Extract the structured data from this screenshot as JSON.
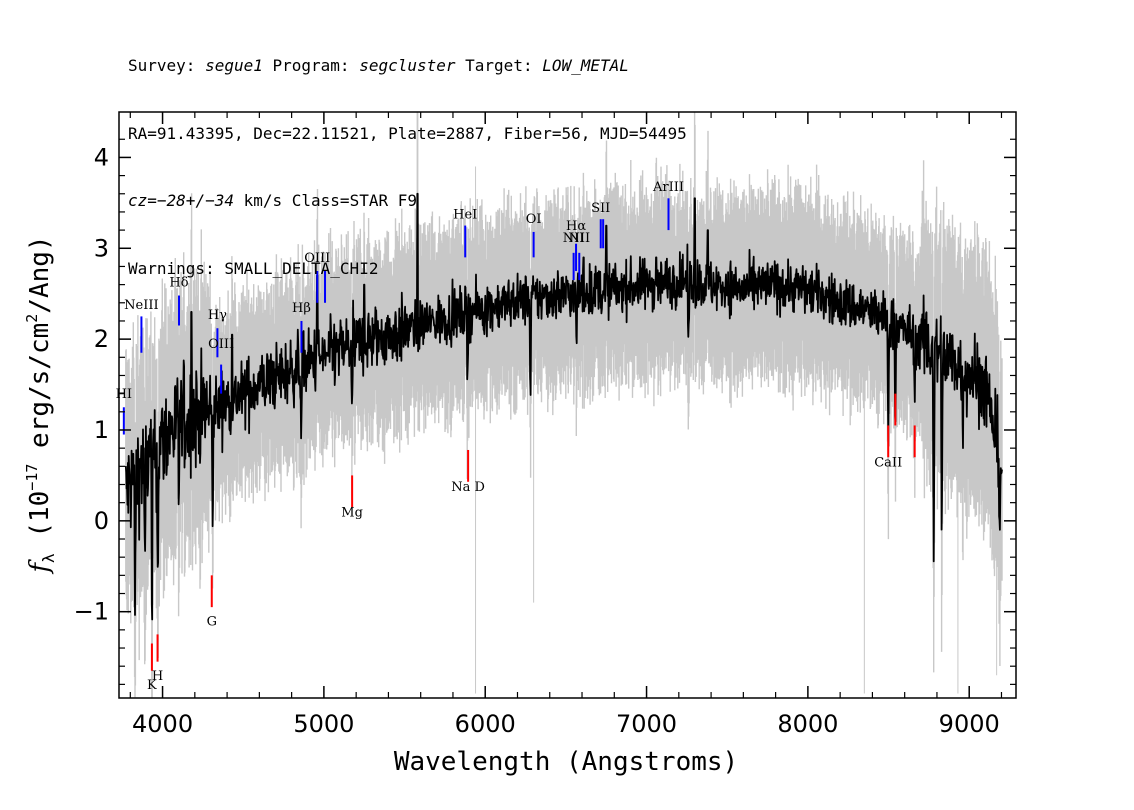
{
  "header": {
    "line1": {
      "survey_key": "Survey: ",
      "survey_val": "segue1",
      "program_key": " Program: ",
      "program_val": "segcluster",
      "target_key": " Target: ",
      "target_val": "LOW_METAL"
    },
    "line2": "RA=91.43395, Dec=22.11521, Plate=2887, Fiber=56, MJD=54495",
    "line3": {
      "cz_label": "cz=",
      "cz_val": "−28+/−34",
      "rest": " km/s Class=STAR F9"
    },
    "line4": "Warnings: SMALL_DELTA_CHI2"
  },
  "chart_data": {
    "type": "line",
    "xlabel": "Wavelength (Angstroms)",
    "ylabel": "f_λ (10^-17 erg/s/cm^2/Ang)",
    "ylabel_parts": {
      "f": "f",
      "sub": "λ",
      "mid": " (10",
      "exp1": "−17",
      "after": " erg/s/cm",
      "exp2": "2",
      "end": "/Ang)"
    },
    "xlim": [
      3730,
      9290
    ],
    "ylim": [
      -1.95,
      4.5
    ],
    "xticks": [
      4000,
      5000,
      6000,
      7000,
      8000,
      9000
    ],
    "xtick_labels": [
      "4000",
      "5000",
      "6000",
      "7000",
      "8000",
      "9000"
    ],
    "yticks": [
      -1,
      0,
      1,
      2,
      3,
      4
    ],
    "ytick_labels": [
      "−1",
      "0",
      "1",
      "2",
      "3",
      "4"
    ],
    "colors": {
      "flux": "#000000",
      "error": "#c8c8c8",
      "emission": "#0000ff",
      "absorption": "#ff0000"
    },
    "continuum_anchors": [
      [
        3770,
        0.3
      ],
      [
        3850,
        0.55
      ],
      [
        3950,
        0.75
      ],
      [
        4050,
        1.0
      ],
      [
        4200,
        1.15
      ],
      [
        4400,
        1.3
      ],
      [
        4600,
        1.5
      ],
      [
        4800,
        1.65
      ],
      [
        5000,
        1.8
      ],
      [
        5200,
        1.95
      ],
      [
        5400,
        2.05
      ],
      [
        5600,
        2.15
      ],
      [
        5800,
        2.25
      ],
      [
        6000,
        2.35
      ],
      [
        6200,
        2.42
      ],
      [
        6400,
        2.48
      ],
      [
        6600,
        2.52
      ],
      [
        6800,
        2.55
      ],
      [
        7000,
        2.6
      ],
      [
        7200,
        2.65
      ],
      [
        7400,
        2.6
      ],
      [
        7600,
        2.55
      ],
      [
        7800,
        2.6
      ],
      [
        8000,
        2.55
      ],
      [
        8200,
        2.4
      ],
      [
        8400,
        2.3
      ],
      [
        8600,
        2.1
      ],
      [
        8800,
        1.85
      ],
      [
        9000,
        1.65
      ],
      [
        9100,
        1.5
      ],
      [
        9200,
        0.6
      ]
    ],
    "features": [
      [
        3830,
        -1.2
      ],
      [
        3890,
        -0.9
      ],
      [
        3935,
        -1.3
      ],
      [
        3970,
        -0.8
      ],
      [
        4310,
        -0.3
      ],
      [
        4100,
        0.3
      ],
      [
        4860,
        0.9
      ],
      [
        5175,
        1.0
      ],
      [
        5890,
        1.5
      ],
      [
        6280,
        1.25
      ],
      [
        6565,
        1.8
      ],
      [
        7260,
        1.8
      ],
      [
        8498,
        0.8
      ],
      [
        8542,
        1.0
      ],
      [
        8662,
        1.2
      ],
      [
        8780,
        -0.4
      ],
      [
        8830,
        0.0
      ],
      [
        8960,
        0.8
      ],
      [
        9190,
        -0.1
      ]
    ],
    "spikes": [
      [
        5580,
        3.6
      ],
      [
        4180,
        2.3
      ],
      [
        4960,
        2.7
      ],
      [
        5990,
        2.1
      ],
      [
        6610,
        2.9
      ],
      [
        7300,
        3.55
      ],
      [
        6750,
        3.25
      ],
      [
        7380,
        3.2
      ],
      [
        7060,
        2.9
      ],
      [
        4430,
        2.05
      ],
      [
        5250,
        2.6
      ]
    ],
    "emission_lines": [
      {
        "label": "HI",
        "x": 3760,
        "label_y": 1.35,
        "tick": [
          0.95,
          1.25
        ]
      },
      {
        "label": "NeIII",
        "x": 3869,
        "label_y": 2.33,
        "tick": [
          1.85,
          2.25
        ]
      },
      {
        "label": "Hδ",
        "x": 4102,
        "label_y": 2.58,
        "tick": [
          2.15,
          2.48
        ]
      },
      {
        "label": "Hγ",
        "x": 4340,
        "label_y": 2.22,
        "tick": [
          1.8,
          2.12
        ]
      },
      {
        "label": "OIII",
        "x": 4363,
        "label_y": 1.9,
        "tick": [
          1.4,
          1.72
        ]
      },
      {
        "label": "Hβ",
        "x": 4861,
        "label_y": 2.3,
        "tick": [
          1.85,
          2.2
        ]
      },
      {
        "label": "OIII",
        "x": 4959,
        "label_y": 2.85,
        "tick": [
          2.4,
          2.75
        ]
      },
      {
        "label": "",
        "x": 5007,
        "tick": [
          2.4,
          2.75
        ]
      },
      {
        "label": "HeI",
        "x": 5876,
        "label_y": 3.33,
        "tick": [
          2.9,
          3.25
        ]
      },
      {
        "label": "OI",
        "x": 6300,
        "label_y": 3.28,
        "tick": [
          2.9,
          3.18
        ]
      },
      {
        "label": "NII",
        "x": 6548,
        "label_y": 3.07,
        "tick": [
          2.65,
          2.95
        ]
      },
      {
        "label": "Hα",
        "x": 6563,
        "label_y": 3.2,
        "tick": [
          2.75,
          3.05
        ]
      },
      {
        "label": "NII",
        "x": 6583,
        "label_y": 3.07,
        "tick": [
          2.65,
          2.95
        ]
      },
      {
        "label": "SII",
        "x": 6716,
        "label_y": 3.4,
        "tick": [
          3.0,
          3.32
        ]
      },
      {
        "label": "",
        "x": 6731,
        "tick": [
          3.0,
          3.32
        ]
      },
      {
        "label": "ArIII",
        "x": 7136,
        "label_y": 3.63,
        "tick": [
          3.2,
          3.55
        ]
      }
    ],
    "absorption_lines": [
      {
        "label": "K",
        "x": 3934,
        "label_y": -1.85,
        "tick": [
          -1.65,
          -1.35
        ]
      },
      {
        "label": "H",
        "x": 3969,
        "label_y": -1.75,
        "tick": [
          -1.55,
          -1.25
        ]
      },
      {
        "label": "G",
        "x": 4305,
        "label_y": -1.15,
        "tick": [
          -0.95,
          -0.6
        ]
      },
      {
        "label": "Mg",
        "x": 5175,
        "label_y": 0.05,
        "tick": [
          0.15,
          0.5
        ]
      },
      {
        "label": "Na D",
        "x": 5894,
        "label_y": 0.33,
        "tick": [
          0.43,
          0.78
        ]
      },
      {
        "label": "CaII",
        "x": 8498,
        "label_y": 0.6,
        "tick": [
          0.7,
          1.05
        ]
      },
      {
        "label": "",
        "x": 8542,
        "tick": [
          1.05,
          1.4
        ]
      },
      {
        "label": "",
        "x": 8662,
        "tick": [
          0.7,
          1.05
        ]
      }
    ]
  }
}
